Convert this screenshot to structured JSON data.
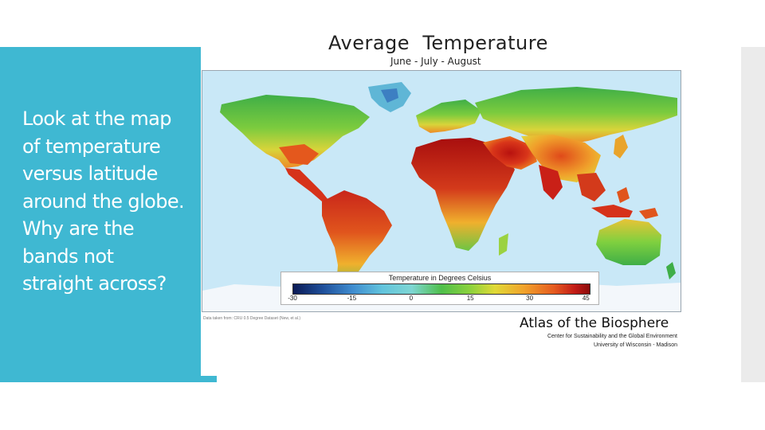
{
  "slide": {
    "question_lines": [
      "Look at the map",
      "of temperature",
      "versus latitude",
      "around the globe.",
      "Why are the",
      "bands not",
      "straight across?"
    ]
  },
  "figure": {
    "title": "Average  Temperature",
    "subtitle": "June - July - August",
    "legend_title": "Temperature in Degrees Celsius",
    "legend_ticks": [
      "-30",
      "-15",
      "0",
      "15",
      "30",
      "45"
    ],
    "legend_colors": [
      "#0b1a55",
      "#3f8ccf",
      "#7ed6d3",
      "#4fbf4a",
      "#e0d936",
      "#f1a12b",
      "#c21b16",
      "#8a0b0b"
    ],
    "data_note": "Data taken from: CRU 0.5 Degree Dataset (New, et al.)",
    "atlas_title": "Atlas of the Biosphere",
    "atlas_line1": "Center for Sustainability and the Global Environment",
    "atlas_line2": "University of Wisconsin - Madison"
  }
}
